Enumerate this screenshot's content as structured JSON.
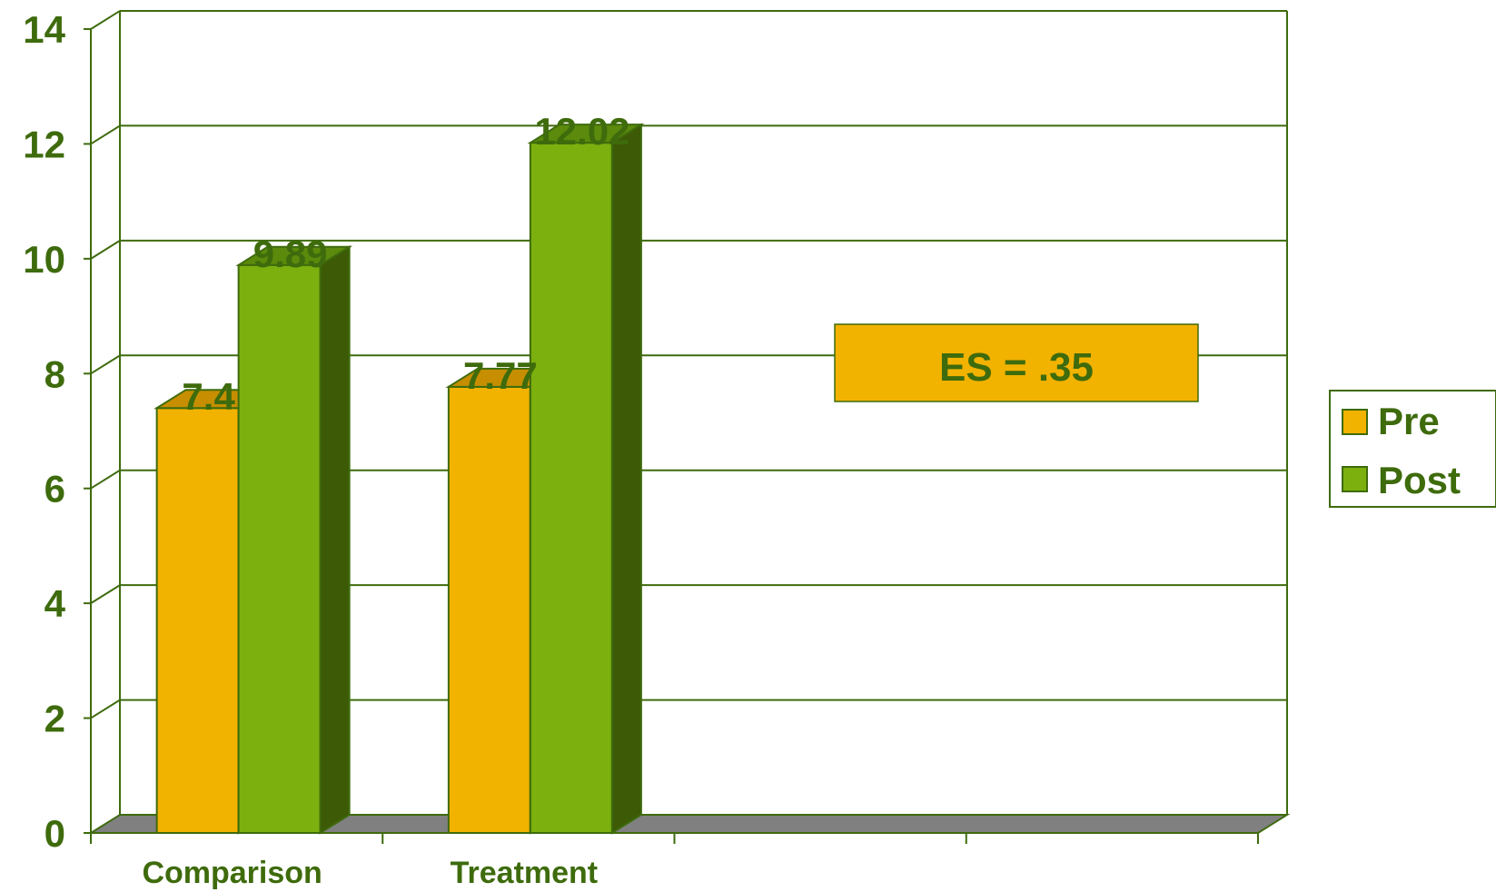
{
  "chart_data": {
    "type": "bar",
    "style": "3d-clustered-column",
    "categories": [
      "Comparison",
      "Treatment"
    ],
    "series": [
      {
        "name": "Pre",
        "values": [
          7.4,
          7.77
        ],
        "labels": [
          "7.4",
          "7.77"
        ],
        "color": "#f2b200",
        "top_color": "#c68e00",
        "side_color": "#a87900"
      },
      {
        "name": "Post",
        "values": [
          9.89,
          12.02
        ],
        "labels": [
          "9.89",
          "12.02"
        ],
        "color": "#7cb00f",
        "top_color": "#5b8a0c",
        "side_color": "#3d5a06"
      }
    ],
    "y_ticks": [
      "0",
      "2",
      "4",
      "6",
      "8",
      "10",
      "12",
      "14"
    ],
    "ylim": [
      0,
      14
    ],
    "grid": true,
    "legend_position": "right",
    "annotation": "ES = .35",
    "colors": {
      "axis": "#3e6b0c",
      "text": "#3e6b0c",
      "floor": "#808080",
      "annotation_fill": "#f2b200"
    }
  }
}
